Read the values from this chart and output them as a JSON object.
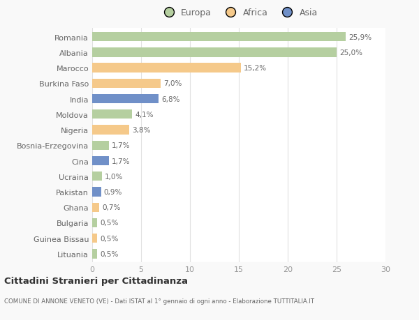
{
  "countries": [
    "Romania",
    "Albania",
    "Marocco",
    "Burkina Faso",
    "India",
    "Moldova",
    "Nigeria",
    "Bosnia-Erzegovina",
    "Cina",
    "Ucraina",
    "Pakistan",
    "Ghana",
    "Bulgaria",
    "Guinea Bissau",
    "Lituania"
  ],
  "values": [
    25.9,
    25.0,
    15.2,
    7.0,
    6.8,
    4.1,
    3.8,
    1.7,
    1.7,
    1.0,
    0.9,
    0.7,
    0.5,
    0.5,
    0.5
  ],
  "labels": [
    "25,9%",
    "25,0%",
    "15,2%",
    "7,0%",
    "6,8%",
    "4,1%",
    "3,8%",
    "1,7%",
    "1,7%",
    "1,0%",
    "0,9%",
    "0,7%",
    "0,5%",
    "0,5%",
    "0,5%"
  ],
  "continents": [
    "Europa",
    "Europa",
    "Africa",
    "Africa",
    "Asia",
    "Europa",
    "Africa",
    "Europa",
    "Asia",
    "Europa",
    "Asia",
    "Africa",
    "Europa",
    "Africa",
    "Europa"
  ],
  "colors": {
    "Europa": "#b5cfa0",
    "Africa": "#f5c98a",
    "Asia": "#7090c8"
  },
  "xlim": [
    0,
    30
  ],
  "xticks": [
    0,
    5,
    10,
    15,
    20,
    25,
    30
  ],
  "title": "Cittadini Stranieri per Cittadinanza",
  "subtitle": "COMUNE DI ANNONE VENETO (VE) - Dati ISTAT al 1° gennaio di ogni anno - Elaborazione TUTTITALIA.IT",
  "background_color": "#f9f9f9",
  "bar_background": "#ffffff",
  "grid_color": "#e0e0e0",
  "label_color": "#666666",
  "axis_color": "#999999"
}
